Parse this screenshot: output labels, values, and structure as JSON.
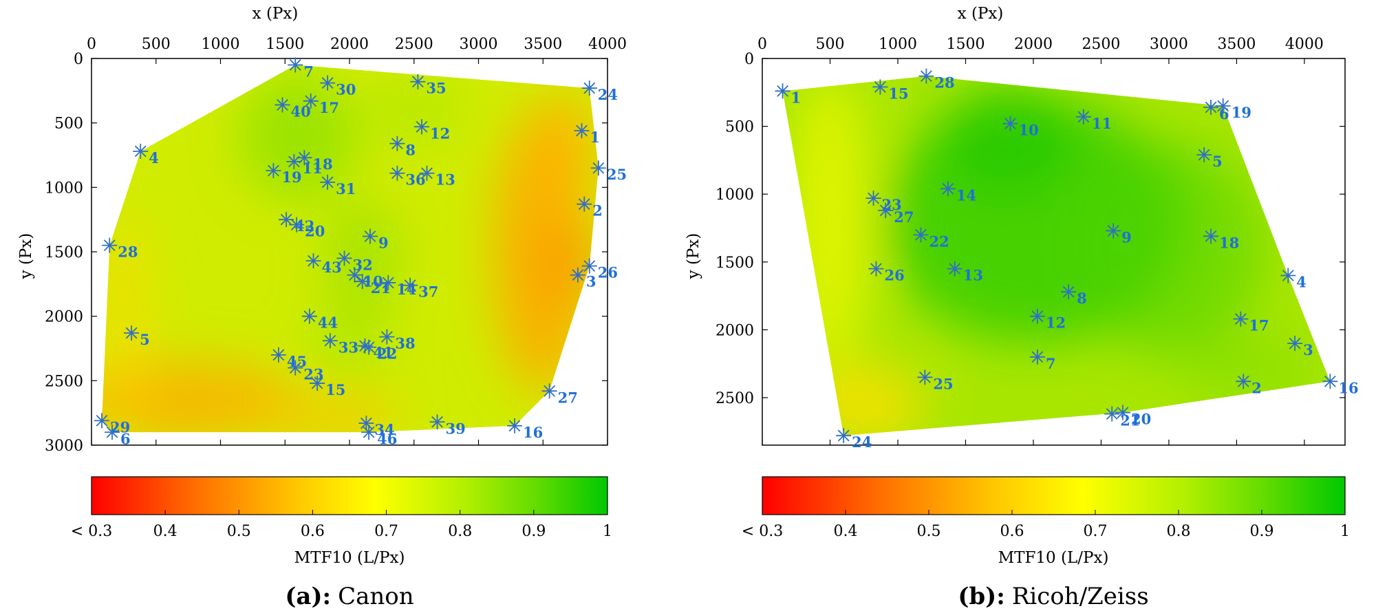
{
  "chart_data": [
    {
      "type": "scatter",
      "title": "",
      "xlabel": "x (Px)",
      "ylabel": "y (Px)",
      "xlim": [
        0,
        4000
      ],
      "ylim": [
        3000,
        0
      ],
      "x_ticks": [
        0,
        500,
        1000,
        1500,
        2000,
        2500,
        3000,
        3500,
        4000
      ],
      "y_ticks": [
        0,
        500,
        1000,
        1500,
        2000,
        2500,
        3000
      ],
      "colorbar": {
        "label": "MTF10 (L/Px)",
        "min": 0.3,
        "max": 1.0,
        "tick_values": [
          0.3,
          0.4,
          0.5,
          0.6,
          0.7,
          0.8,
          0.9,
          1.0
        ],
        "tick_labels": [
          "< 0.3",
          "0.4",
          "0.5",
          "0.6",
          "0.7",
          "0.8",
          "0.9",
          "1"
        ],
        "colors": [
          "#ff0000",
          "#ff8800",
          "#ffff00",
          "#00c800"
        ]
      },
      "caption": {
        "tag": "(a):",
        "name": "Canon"
      },
      "field_hint": "yellow-orange at left and bottom, orange band on right edge, green around center-top",
      "points": [
        {
          "label": "1",
          "x": 3800,
          "y": 560
        },
        {
          "label": "2",
          "x": 3820,
          "y": 1130
        },
        {
          "label": "3",
          "x": 3770,
          "y": 1680
        },
        {
          "label": "4",
          "x": 380,
          "y": 720
        },
        {
          "label": "5",
          "x": 310,
          "y": 2130
        },
        {
          "label": "6",
          "x": 160,
          "y": 2900
        },
        {
          "label": "7",
          "x": 1580,
          "y": 50
        },
        {
          "label": "8",
          "x": 2370,
          "y": 660
        },
        {
          "label": "9",
          "x": 2160,
          "y": 1380
        },
        {
          "label": "10",
          "x": 2040,
          "y": 1680
        },
        {
          "label": "11",
          "x": 1570,
          "y": 800
        },
        {
          "label": "12",
          "x": 2560,
          "y": 530
        },
        {
          "label": "13",
          "x": 2600,
          "y": 890
        },
        {
          "label": "14",
          "x": 2300,
          "y": 1740
        },
        {
          "label": "15",
          "x": 1750,
          "y": 2520
        },
        {
          "label": "16",
          "x": 3280,
          "y": 2850
        },
        {
          "label": "17",
          "x": 1700,
          "y": 330
        },
        {
          "label": "18",
          "x": 1650,
          "y": 770
        },
        {
          "label": "19",
          "x": 1410,
          "y": 870
        },
        {
          "label": "20",
          "x": 1590,
          "y": 1290
        },
        {
          "label": "21",
          "x": 2100,
          "y": 1730
        },
        {
          "label": "22",
          "x": 2150,
          "y": 2240
        },
        {
          "label": "23",
          "x": 1580,
          "y": 2400
        },
        {
          "label": "24",
          "x": 3860,
          "y": 230
        },
        {
          "label": "25",
          "x": 3930,
          "y": 850
        },
        {
          "label": "26",
          "x": 3860,
          "y": 1610
        },
        {
          "label": "27",
          "x": 3550,
          "y": 2580
        },
        {
          "label": "28",
          "x": 140,
          "y": 1450
        },
        {
          "label": "29",
          "x": 80,
          "y": 2810
        },
        {
          "label": "30",
          "x": 1830,
          "y": 190
        },
        {
          "label": "31",
          "x": 1830,
          "y": 960
        },
        {
          "label": "32",
          "x": 1960,
          "y": 1550
        },
        {
          "label": "33",
          "x": 1850,
          "y": 2190
        },
        {
          "label": "34",
          "x": 2130,
          "y": 2830
        },
        {
          "label": "35",
          "x": 2530,
          "y": 180
        },
        {
          "label": "36",
          "x": 2370,
          "y": 890
        },
        {
          "label": "37",
          "x": 2470,
          "y": 1760
        },
        {
          "label": "38",
          "x": 2290,
          "y": 2160
        },
        {
          "label": "39",
          "x": 2680,
          "y": 2820
        },
        {
          "label": "40",
          "x": 1480,
          "y": 360
        },
        {
          "label": "41",
          "x": 2120,
          "y": 2230
        },
        {
          "label": "42",
          "x": 1510,
          "y": 1250
        },
        {
          "label": "43",
          "x": 1720,
          "y": 1570
        },
        {
          "label": "44",
          "x": 1690,
          "y": 2000
        },
        {
          "label": "45",
          "x": 1450,
          "y": 2300
        },
        {
          "label": "46",
          "x": 2150,
          "y": 2900
        }
      ]
    },
    {
      "type": "scatter",
      "title": "",
      "xlabel": "x (Px)",
      "ylabel": "y (Px)",
      "xlim": [
        0,
        4300
      ],
      "ylim": [
        2850,
        0
      ],
      "x_ticks": [
        0,
        500,
        1000,
        1500,
        2000,
        2500,
        3000,
        3500,
        4000
      ],
      "y_ticks": [
        0,
        500,
        1000,
        1500,
        2000,
        2500
      ],
      "colorbar": {
        "label": "MTF10 (L/Px)",
        "min": 0.3,
        "max": 1.0,
        "tick_values": [
          0.3,
          0.4,
          0.5,
          0.6,
          0.7,
          0.8,
          0.9,
          1.0
        ],
        "tick_labels": [
          "< 0.3",
          "0.4",
          "0.5",
          "0.6",
          "0.7",
          "0.8",
          "0.9",
          "1"
        ],
        "colors": [
          "#ff0000",
          "#ff8800",
          "#ffff00",
          "#00c800"
        ]
      },
      "caption": {
        "tag": "(b):",
        "name": "Ricoh/Zeiss"
      },
      "field_hint": "green center, yellow toward left and bottom-left edges",
      "points": [
        {
          "label": "1",
          "x": 150,
          "y": 240
        },
        {
          "label": "2",
          "x": 3550,
          "y": 2380
        },
        {
          "label": "3",
          "x": 3930,
          "y": 2100
        },
        {
          "label": "4",
          "x": 3880,
          "y": 1600
        },
        {
          "label": "5",
          "x": 3260,
          "y": 710
        },
        {
          "label": "6",
          "x": 3310,
          "y": 360
        },
        {
          "label": "7",
          "x": 2030,
          "y": 2200
        },
        {
          "label": "8",
          "x": 2260,
          "y": 1720
        },
        {
          "label": "9",
          "x": 2590,
          "y": 1270
        },
        {
          "label": "10",
          "x": 1830,
          "y": 480
        },
        {
          "label": "11",
          "x": 2370,
          "y": 430
        },
        {
          "label": "12",
          "x": 2030,
          "y": 1900
        },
        {
          "label": "13",
          "x": 1420,
          "y": 1550
        },
        {
          "label": "14",
          "x": 1370,
          "y": 960
        },
        {
          "label": "15",
          "x": 870,
          "y": 210
        },
        {
          "label": "16",
          "x": 4190,
          "y": 2380
        },
        {
          "label": "17",
          "x": 3530,
          "y": 1920
        },
        {
          "label": "18",
          "x": 3310,
          "y": 1310
        },
        {
          "label": "19",
          "x": 3400,
          "y": 350
        },
        {
          "label": "20",
          "x": 2660,
          "y": 2610
        },
        {
          "label": "21",
          "x": 2580,
          "y": 2620
        },
        {
          "label": "22",
          "x": 1170,
          "y": 1300
        },
        {
          "label": "23",
          "x": 820,
          "y": 1030
        },
        {
          "label": "24",
          "x": 600,
          "y": 2780
        },
        {
          "label": "25",
          "x": 1200,
          "y": 2350
        },
        {
          "label": "26",
          "x": 840,
          "y": 1550
        },
        {
          "label": "27",
          "x": 910,
          "y": 1120
        },
        {
          "label": "28",
          "x": 1210,
          "y": 130
        }
      ]
    }
  ]
}
